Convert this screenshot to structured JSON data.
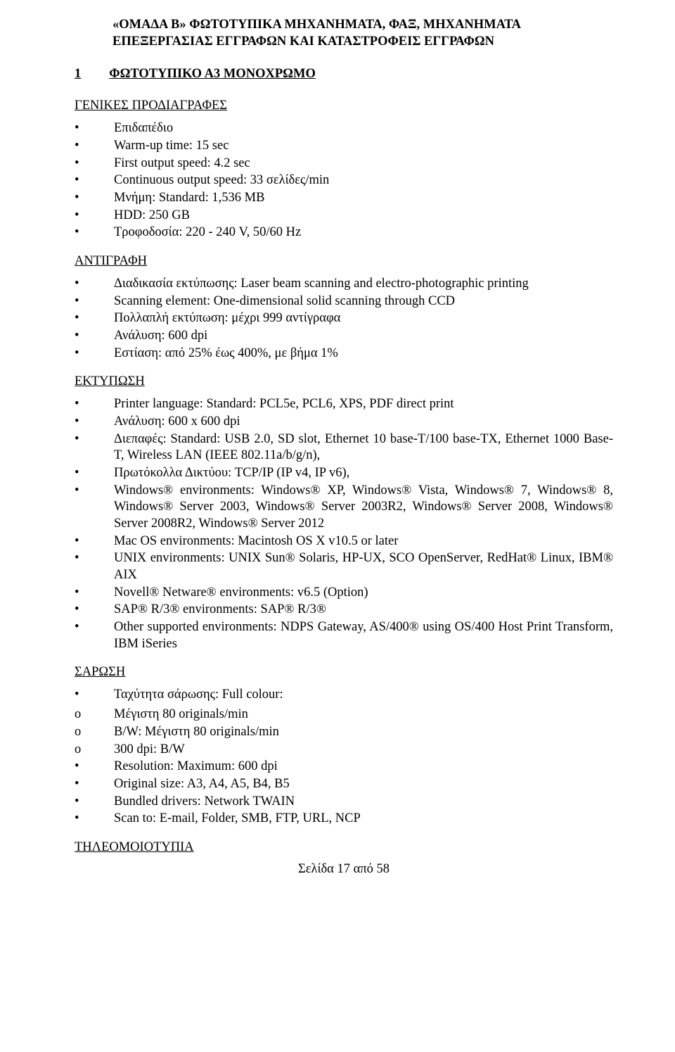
{
  "colors": {
    "text": "#000000",
    "background": "#ffffff"
  },
  "typography": {
    "body_font_family": "Times New Roman",
    "body_font_size_pt": 14,
    "title_weight": "bold"
  },
  "title": {
    "line1": "«ΟΜΑΔΑ Β»   ΦΩΤΟΤΥΠΙΚΑ ΜΗΧΑΝΗΜΑΤΑ, ΦΑΞ, ΜΗΧΑΝΗΜΑΤΑ",
    "line2": "ΕΠΕΞΕΡΓΑΣΙΑΣ ΕΓΓΡΑΦΩΝ ΚΑΙ ΚΑΤΑΣΤΡΟΦΕΙΣ ΕΓΓΡΑΦΩΝ"
  },
  "item": {
    "number": "1",
    "label": "ΦΩΤΟΤΥΠΙΚΟ Α3 ΜΟΝΟΧΡΩΜΟ"
  },
  "sections": {
    "general": {
      "heading": "ΓΕΝΙΚΕΣ ΠΡΟΔΙΑΓΡΑΦΕΣ",
      "items": [
        "Επιδαπέδιο",
        "Warm-up time: 15 sec",
        "First output speed: 4.2 sec",
        "Continuous output speed: 33 σελίδες/min",
        "Μνήμη: Standard: 1,536 MB",
        "HDD: 250 GB",
        "Τροφοδοσία: 220 - 240 V, 50/60 Hz"
      ]
    },
    "copy": {
      "heading": "ΑΝΤΙΓΡΑΦΗ",
      "items": [
        "Διαδικασία εκτύπωσης: Laser beam scanning and electro-photographic printing",
        "Scanning element: One-dimensional solid scanning through CCD",
        "Πολλαπλή εκτύπωση: μέχρι 999 αντίγραφα",
        "Ανάλυση: 600 dpi",
        "Εστίαση: από 25% έως 400%, με βήμα 1%"
      ]
    },
    "print": {
      "heading": "ΕΚΤΥΠΩΣΗ",
      "items": [
        "Printer language: Standard: PCL5e, PCL6, XPS, PDF direct print",
        "Ανάλυση: 600 x 600 dpi",
        "Διεπαφές: Standard: USB 2.0, SD slot, Ethernet 10 base-T/100 base-TX, Ethernet 1000 Base-   T, Wireless LAN (IEEE 802.11a/b/g/n),",
        "Πρωτόκολλα Δικτύου: TCP/IP (IP v4, IP v6),",
        "Windows® environments: Windows® XP, Windows® Vista, Windows® 7, Windows® 8, Windows® Server 2003, Windows® Server 2003R2, Windows® Server 2008, Windows® Server 2008R2, Windows® Server 2012",
        " Mac OS environments: Macintosh OS X v10.5 or later",
        " UNIX environments: UNIX Sun® Solaris, HP-UX, SCO OpenServer, RedHat® Linux, IBM® AIX",
        "Novell® Netware® environments: v6.5 (Option)",
        " SAP® R/3® environments: SAP® R/3®",
        "Other supported environments: NDPS Gateway, AS/400® using OS/400 Host Print Transform, IBM iSeries"
      ]
    },
    "scan": {
      "heading": "ΣΑΡΩΣΗ",
      "main": {
        "label": "Ταχύτητα σάρωσης: Full colour:"
      },
      "subitems": [
        "Μέγιστη 80 originals/min",
        "B/W:   Μέγιστη 80 originals/min",
        "300 dpi: B/W"
      ],
      "rest": [
        "Resolution: Maximum: 600 dpi",
        "Original size: A3, A4, A5, B4, B5",
        "Bundled drivers: Network TWAIN",
        "Scan to: E-mail, Folder, SMB, FTP, URL, NCP"
      ]
    },
    "fax": {
      "heading": "ΤΗΛΕΟΜΟΙΟΤΥΠΙΑ"
    }
  },
  "footer": "Σελίδα 17 από 58"
}
